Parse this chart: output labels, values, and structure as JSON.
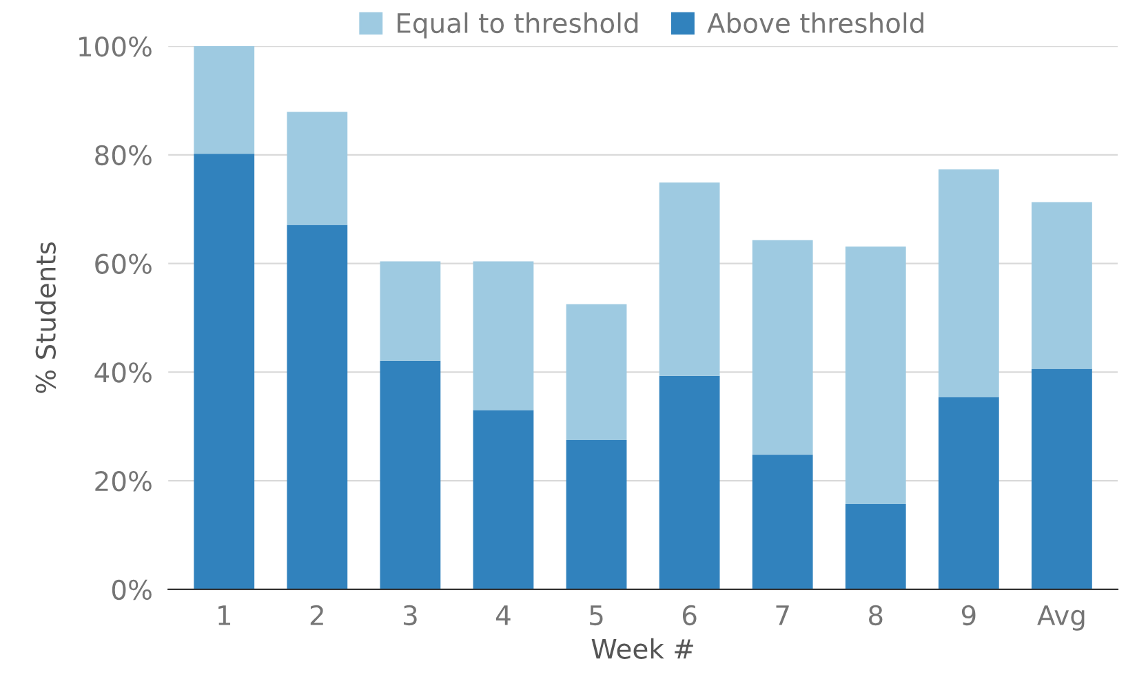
{
  "chart_data": {
    "type": "bar",
    "stacked": true,
    "xlabel": "Week #",
    "ylabel": "% Students",
    "categories": [
      "1",
      "2",
      "3",
      "4",
      "5",
      "6",
      "7",
      "8",
      "9",
      "Avg"
    ],
    "series": [
      {
        "name": "Above threshold",
        "color": "#3182bd",
        "values": [
          80.2,
          67.1,
          42.1,
          33.0,
          27.5,
          39.3,
          24.8,
          15.7,
          35.4,
          40.6
        ]
      },
      {
        "name": "Equal to threshold",
        "color": "#9ecae1",
        "values": [
          19.8,
          20.8,
          18.3,
          27.4,
          25.0,
          35.6,
          39.5,
          47.4,
          41.9,
          30.7
        ]
      }
    ],
    "ylim": [
      0,
      100
    ],
    "yticks": [
      {
        "value": 0,
        "label": "0%"
      },
      {
        "value": 20,
        "label": "20%"
      },
      {
        "value": 40,
        "label": "40%"
      },
      {
        "value": 60,
        "label": "60%"
      },
      {
        "value": 80,
        "label": "80%"
      },
      {
        "value": 100,
        "label": "100%"
      }
    ],
    "grid": "y",
    "legend": "top"
  }
}
